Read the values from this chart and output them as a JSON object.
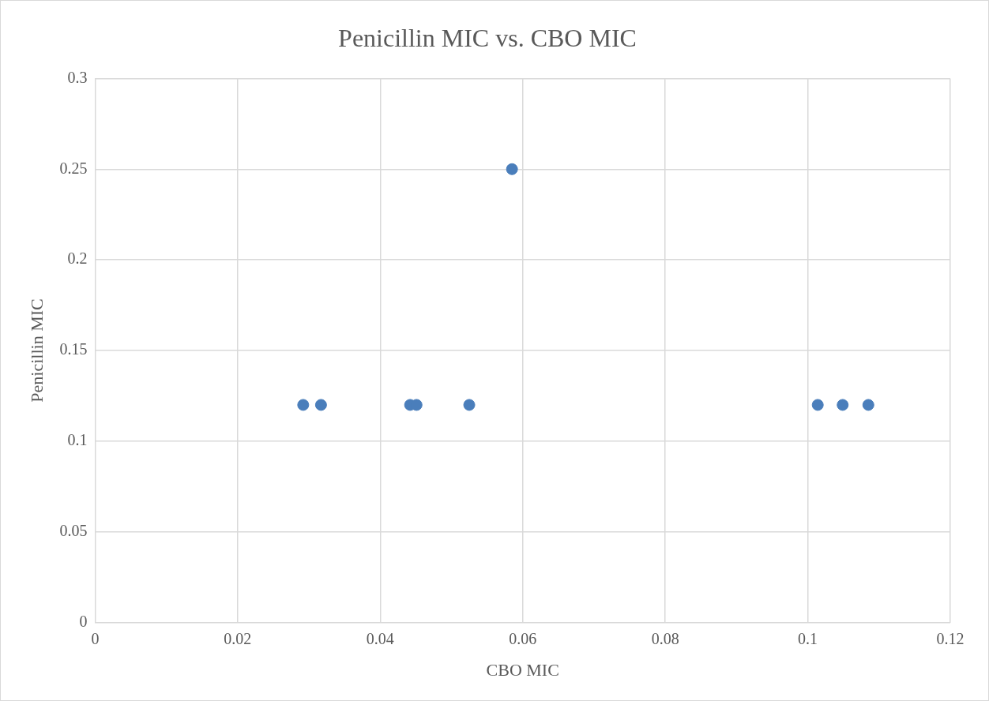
{
  "chart_data": {
    "type": "scatter",
    "title": "Penicillin MIC vs. CBO MIC",
    "xlabel": "CBO MIC",
    "ylabel": "Penicillin MIC",
    "series": [
      {
        "color": "#4a7ebb",
        "x": [
          0.0292,
          0.0317,
          0.0442,
          0.0451,
          0.0525,
          0.0585,
          0.1014,
          0.1049,
          0.1085
        ],
        "values": [
          0.12,
          0.12,
          0.12,
          0.12,
          0.12,
          0.25,
          0.12,
          0.12,
          0.12
        ]
      }
    ],
    "xlim": [
      0,
      0.12
    ],
    "xticks": [
      0,
      0.02,
      0.04,
      0.06,
      0.08,
      0.1,
      0.12
    ],
    "ylim": [
      0,
      0.3
    ],
    "yticks": [
      0,
      0.05,
      0.1,
      0.15,
      0.2,
      0.25,
      0.3
    ],
    "grid": true,
    "legend": false,
    "marker": "circle"
  }
}
